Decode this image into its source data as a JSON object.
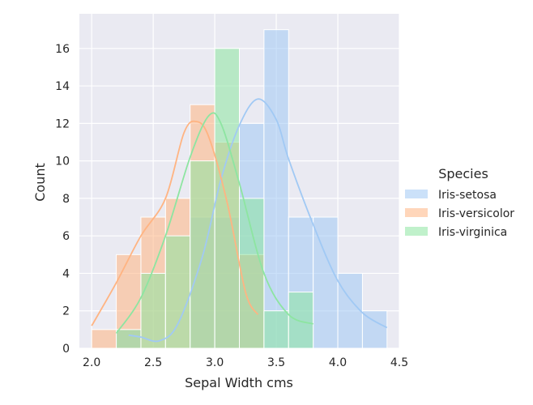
{
  "chart_data": {
    "type": "histogram",
    "xlabel": "Sepal Width cms",
    "ylabel": "Count",
    "xlim": [
      1.9,
      4.5
    ],
    "ylim": [
      0,
      17.85
    ],
    "x_ticks": [
      "2.0",
      "2.5",
      "3.0",
      "3.5",
      "4.0",
      "4.5"
    ],
    "x_tick_values": [
      2.0,
      2.5,
      3.0,
      3.5,
      4.0,
      4.5
    ],
    "y_ticks": [
      "0",
      "2",
      "4",
      "6",
      "8",
      "10",
      "12",
      "14",
      "16"
    ],
    "y_tick_values": [
      0,
      2,
      4,
      6,
      8,
      10,
      12,
      14,
      16
    ],
    "grid": true,
    "background": "#eaeaf2",
    "legend": {
      "title": "Species",
      "placement": "right",
      "entries": [
        "Iris-setosa",
        "Iris-versicolor",
        "Iris-virginica"
      ]
    },
    "bin_width": 0.2,
    "series": [
      {
        "name": "Iris-setosa",
        "color": "#a1c9f4",
        "bin_edges": [
          2.2,
          2.4,
          2.6,
          2.8,
          3.0,
          3.2,
          3.4,
          3.6,
          3.8,
          4.0,
          4.2,
          4.4
        ],
        "counts": [
          1,
          0,
          0,
          7,
          7,
          12,
          17,
          7,
          7,
          4,
          2
        ],
        "kde": [
          [
            2.3,
            0.7
          ],
          [
            2.4,
            0.6
          ],
          [
            2.55,
            0.4
          ],
          [
            2.7,
            1.3
          ],
          [
            2.9,
            4.9
          ],
          [
            3.05,
            9.0
          ],
          [
            3.2,
            11.9
          ],
          [
            3.35,
            13.3
          ],
          [
            3.5,
            12.2
          ],
          [
            3.6,
            10.1
          ],
          [
            3.8,
            6.6
          ],
          [
            4.0,
            3.6
          ],
          [
            4.2,
            1.9
          ],
          [
            4.4,
            1.1
          ]
        ]
      },
      {
        "name": "Iris-versicolor",
        "color": "#ffb482",
        "bin_edges": [
          2.0,
          2.2,
          2.4,
          2.6,
          2.8,
          3.0,
          3.2,
          3.4
        ],
        "counts": [
          1,
          5,
          7,
          8,
          13,
          11,
          5
        ],
        "kde": [
          [
            2.0,
            1.2
          ],
          [
            2.2,
            3.5
          ],
          [
            2.4,
            6.0
          ],
          [
            2.6,
            8.0
          ],
          [
            2.75,
            11.5
          ],
          [
            2.85,
            12.1
          ],
          [
            2.95,
            11.3
          ],
          [
            3.1,
            7.8
          ],
          [
            3.25,
            3.0
          ],
          [
            3.35,
            1.8
          ]
        ]
      },
      {
        "name": "Iris-virginica",
        "color": "#8de5a1",
        "bin_edges": [
          2.2,
          2.4,
          2.6,
          2.8,
          3.0,
          3.2,
          3.4,
          3.6,
          3.8
        ],
        "counts": [
          1,
          4,
          6,
          10,
          16,
          8,
          2,
          3
        ],
        "kde": [
          [
            2.2,
            0.8
          ],
          [
            2.4,
            2.7
          ],
          [
            2.6,
            6.0
          ],
          [
            2.8,
            10.2
          ],
          [
            2.95,
            12.4
          ],
          [
            3.05,
            12.0
          ],
          [
            3.2,
            8.8
          ],
          [
            3.4,
            4.0
          ],
          [
            3.6,
            1.8
          ],
          [
            3.8,
            1.3
          ]
        ]
      }
    ]
  }
}
